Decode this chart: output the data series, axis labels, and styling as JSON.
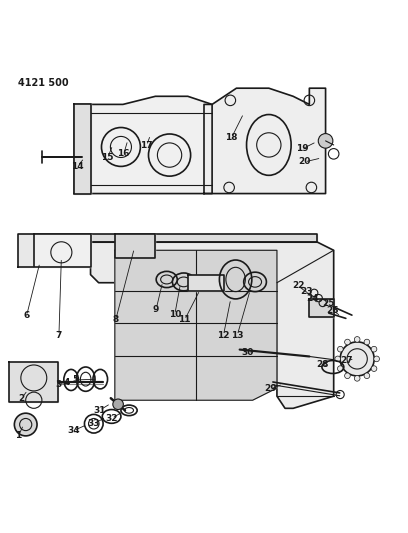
{
  "title": "4121 500",
  "bg_color": "#ffffff",
  "line_color": "#1a1a1a",
  "figsize": [
    4.08,
    5.33
  ],
  "dpi": 100
}
